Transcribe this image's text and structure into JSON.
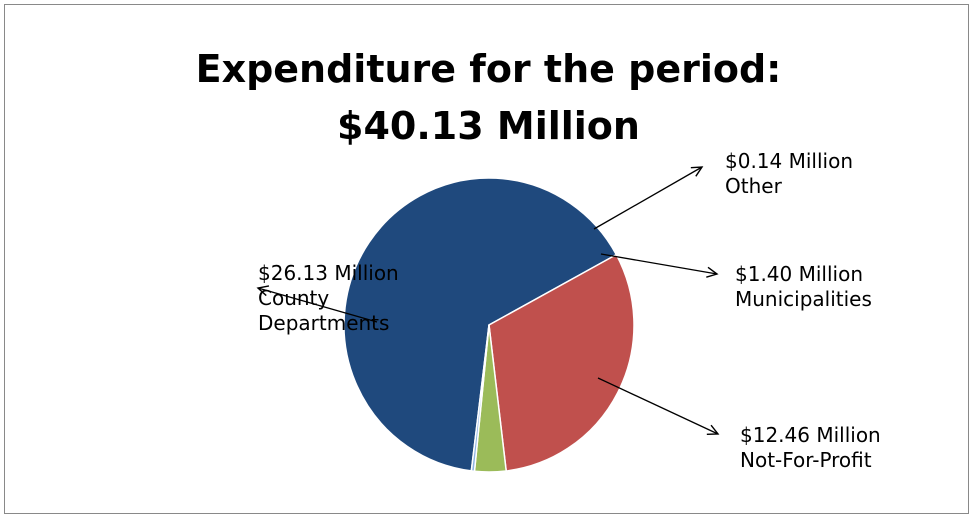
{
  "chart_data": {
    "type": "pie",
    "title": "Expenditure for the period:",
    "subtitle": "$40.13 Million",
    "slices": [
      {
        "value": 26.13,
        "label_lines": [
          "$26.13 Million",
          "County",
          "Departments"
        ],
        "color": "#1f497d"
      },
      {
        "value": 12.46,
        "label_lines": [
          "$12.46 Million",
          "Not-For-Profit"
        ],
        "color": "#c0504d"
      },
      {
        "value": 1.4,
        "label_lines": [
          "$1.40 Million",
          "Municipalities"
        ],
        "color": "#9bbb59"
      },
      {
        "value": 0.14,
        "label_lines": [
          "$0.14 Million",
          "Other"
        ],
        "color": "#8eb4e3"
      }
    ],
    "legend": "none",
    "grid": false
  }
}
